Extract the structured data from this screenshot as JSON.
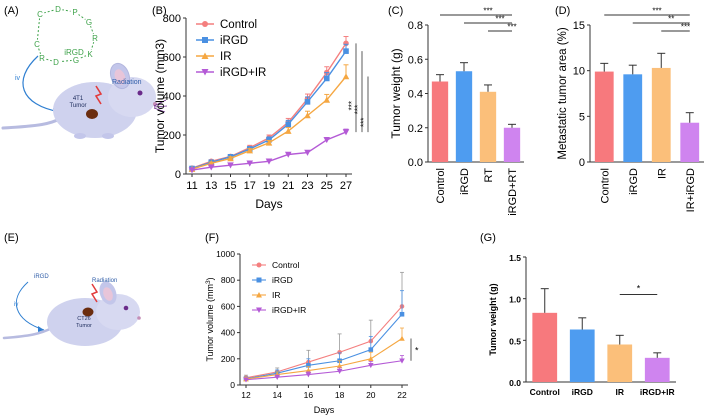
{
  "panels": {
    "A": "(A)",
    "B": "(B)",
    "C": "(C)",
    "D": "(D)",
    "E": "(E)",
    "F": "(F)",
    "G": "(G)"
  },
  "illustrations": {
    "top": {
      "peptide_letters": [
        "C",
        "D",
        "P",
        "G",
        "R",
        "K",
        "G",
        "D",
        "R",
        "C"
      ],
      "peptide_name": "iRGD",
      "route": "iv",
      "radiation": "Radiation",
      "tumor": [
        "4T1",
        "Tumor"
      ]
    },
    "bottom": {
      "peptide_name": "iRGD",
      "route": "iv",
      "radiation": "Radiation",
      "tumor": [
        "CT26",
        "Tumor"
      ]
    }
  },
  "colors": {
    "control": "#f47f7f",
    "irgd": "#4a90e2",
    "ir": "#f5a742",
    "combo": "#b45ad6",
    "bar_control": "#f7797d",
    "bar_irgd": "#4e9cf0",
    "bar_ir": "#fbbf7a",
    "bar_combo": "#cf84ef",
    "peptide": "#3ea24a",
    "mouse": "#cfd2ee"
  },
  "chart_data": [
    {
      "id": "B",
      "type": "line",
      "ylabel": "Tumor volume (mm3)",
      "xlabel": "Days",
      "ylim": [
        0,
        800
      ],
      "yticks": [
        0,
        200,
        400,
        600,
        800
      ],
      "x": [
        11,
        13,
        15,
        17,
        19,
        21,
        23,
        25,
        27
      ],
      "series": [
        {
          "name": "Control",
          "marker": "circle",
          "values": [
            30,
            65,
            90,
            135,
            185,
            265,
            385,
            520,
            670
          ],
          "err": [
            5,
            8,
            10,
            12,
            15,
            20,
            25,
            30,
            35
          ]
        },
        {
          "name": "iRGD",
          "marker": "square",
          "values": [
            28,
            60,
            88,
            128,
            175,
            255,
            370,
            490,
            630
          ],
          "err": [
            5,
            8,
            10,
            12,
            15,
            20,
            25,
            30,
            35
          ]
        },
        {
          "name": "IR",
          "marker": "triangle",
          "values": [
            25,
            55,
            80,
            120,
            160,
            220,
            300,
            380,
            500
          ],
          "err": [
            4,
            6,
            8,
            10,
            12,
            18,
            22,
            28,
            60
          ]
        },
        {
          "name": "iRGD+IR",
          "marker": "triangle-down",
          "values": [
            20,
            35,
            45,
            55,
            65,
            100,
            110,
            175,
            215
          ],
          "err": [
            3,
            4,
            5,
            5,
            6,
            8,
            10,
            12,
            15
          ]
        }
      ],
      "significance": [
        "***",
        "***",
        "***"
      ]
    },
    {
      "id": "C",
      "type": "bar",
      "ylabel": "Tumor weight (g)",
      "ylim": [
        0,
        0.8
      ],
      "yticks": [
        "0.0",
        "0.2",
        "0.4",
        "0.6",
        "0.8"
      ],
      "categories": [
        "Control",
        "iRGD",
        "RT",
        "iRGD+RT"
      ],
      "values": [
        0.47,
        0.53,
        0.41,
        0.2
      ],
      "err": [
        0.04,
        0.05,
        0.04,
        0.02
      ],
      "significance": [
        "***",
        "***",
        "***"
      ]
    },
    {
      "id": "D",
      "type": "bar",
      "ylabel": "Metastatic tumor area (%)",
      "ylim": [
        0,
        15
      ],
      "yticks": [
        "0",
        "5",
        "10",
        "15"
      ],
      "categories": [
        "Control",
        "iRGD",
        "IR",
        "IR+iRGD"
      ],
      "values": [
        9.9,
        9.6,
        10.3,
        4.3
      ],
      "err": [
        0.9,
        1.0,
        1.6,
        1.1
      ],
      "significance": [
        "***",
        "**",
        "***"
      ]
    },
    {
      "id": "F",
      "type": "line",
      "ylabel": "Tumor volume (mm",
      "ylabel_sup": "3",
      "ylabel_end": ")",
      "xlabel": "Days",
      "ylim": [
        0,
        1000
      ],
      "yticks": [
        0,
        200,
        400,
        600,
        800,
        1000
      ],
      "x": [
        12,
        14,
        16,
        18,
        20,
        22
      ],
      "series": [
        {
          "name": "Control",
          "marker": "circle",
          "values": [
            55,
            100,
            175,
            250,
            335,
            600
          ],
          "err": [
            20,
            30,
            90,
            140,
            160,
            260
          ]
        },
        {
          "name": "iRGD",
          "marker": "square",
          "values": [
            48,
            90,
            150,
            185,
            270,
            540
          ],
          "err": [
            15,
            25,
            50,
            60,
            100,
            180
          ]
        },
        {
          "name": "IR",
          "marker": "triangle",
          "values": [
            45,
            80,
            110,
            145,
            200,
            355
          ],
          "err": [
            15,
            20,
            30,
            40,
            50,
            80
          ]
        },
        {
          "name": "iRGD+IR",
          "marker": "triangle-down",
          "values": [
            40,
            60,
            80,
            105,
            150,
            185
          ],
          "err": [
            10,
            15,
            20,
            25,
            30,
            40
          ]
        }
      ],
      "significance": [
        "*"
      ]
    },
    {
      "id": "G",
      "type": "bar",
      "ylabel": "Tumor weight (g)",
      "ylim": [
        0,
        1.5
      ],
      "yticks": [
        "0.0",
        "0.5",
        "1.0",
        "1.5"
      ],
      "categories": [
        "Control",
        "iRGD",
        "IR",
        "iRGD+IR"
      ],
      "values": [
        0.83,
        0.63,
        0.45,
        0.29
      ],
      "err": [
        0.29,
        0.14,
        0.11,
        0.06
      ],
      "significance": [
        "*"
      ]
    }
  ]
}
